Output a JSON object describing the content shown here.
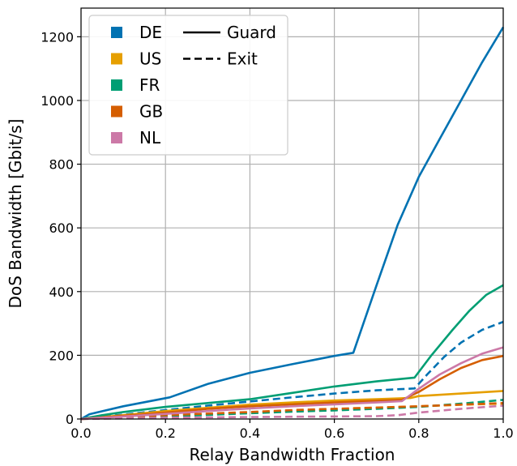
{
  "chart_data": {
    "type": "line",
    "title": "",
    "xlabel": "Relay Bandwidth Fraction",
    "ylabel": "DoS Bandwidth [Gbit/s]",
    "xlim": [
      0.0,
      1.0
    ],
    "ylim": [
      0,
      1290
    ],
    "xticks": [
      {
        "value": 0.0,
        "label": "0.0"
      },
      {
        "value": 0.2,
        "label": "0.2"
      },
      {
        "value": 0.4,
        "label": "0.4"
      },
      {
        "value": 0.6,
        "label": "0.6"
      },
      {
        "value": 0.8,
        "label": "0.8"
      },
      {
        "value": 1.0,
        "label": "1.0"
      }
    ],
    "yticks": [
      {
        "value": 0,
        "label": "0"
      },
      {
        "value": 200,
        "label": "200"
      },
      {
        "value": 400,
        "label": "400"
      },
      {
        "value": 600,
        "label": "600"
      },
      {
        "value": 800,
        "label": "800"
      },
      {
        "value": 1000,
        "label": "1000"
      },
      {
        "value": 1200,
        "label": "1200"
      }
    ],
    "grid": true,
    "legend_placement": "top-left",
    "legend": {
      "countries": [
        {
          "label": "DE",
          "color": "#0072b2"
        },
        {
          "label": "US",
          "color": "#e69f00"
        },
        {
          "label": "FR",
          "color": "#009e73"
        },
        {
          "label": "GB",
          "color": "#d55e00"
        },
        {
          "label": "NL",
          "color": "#cc79a7"
        }
      ],
      "styles": [
        {
          "label": "Guard",
          "dash": "solid"
        },
        {
          "label": "Exit",
          "dash": "dashed"
        }
      ]
    },
    "series": [
      {
        "country": "DE",
        "kind": "Guard",
        "color": "#0072b2",
        "dash": "solid",
        "points": [
          [
            0,
            0
          ],
          [
            0.02,
            15
          ],
          [
            0.1,
            40
          ],
          [
            0.21,
            68
          ],
          [
            0.3,
            110
          ],
          [
            0.4,
            145
          ],
          [
            0.5,
            172
          ],
          [
            0.6,
            198
          ],
          [
            0.645,
            208
          ],
          [
            0.7,
            420
          ],
          [
            0.75,
            610
          ],
          [
            0.8,
            760
          ],
          [
            0.85,
            880
          ],
          [
            0.9,
            1000
          ],
          [
            0.95,
            1120
          ],
          [
            1.0,
            1230
          ]
        ]
      },
      {
        "country": "DE",
        "kind": "Exit",
        "color": "#0072b2",
        "dash": "dashed",
        "points": [
          [
            0,
            0
          ],
          [
            0.1,
            14
          ],
          [
            0.2,
            28
          ],
          [
            0.3,
            42
          ],
          [
            0.4,
            55
          ],
          [
            0.5,
            68
          ],
          [
            0.6,
            80
          ],
          [
            0.7,
            90
          ],
          [
            0.79,
            96
          ],
          [
            0.82,
            140
          ],
          [
            0.86,
            195
          ],
          [
            0.9,
            240
          ],
          [
            0.95,
            280
          ],
          [
            1.0,
            305
          ]
        ]
      },
      {
        "country": "US",
        "kind": "Guard",
        "color": "#e69f00",
        "dash": "solid",
        "points": [
          [
            0,
            0
          ],
          [
            0.1,
            12
          ],
          [
            0.2,
            25
          ],
          [
            0.3,
            35
          ],
          [
            0.4,
            45
          ],
          [
            0.5,
            52
          ],
          [
            0.6,
            58
          ],
          [
            0.7,
            62
          ],
          [
            0.78,
            66
          ],
          [
            0.8,
            72
          ],
          [
            0.9,
            80
          ],
          [
            1.0,
            88
          ]
        ]
      },
      {
        "country": "US",
        "kind": "Exit",
        "color": "#e69f00",
        "dash": "dashed",
        "points": [
          [
            0,
            0
          ],
          [
            0.1,
            4
          ],
          [
            0.2,
            10
          ],
          [
            0.3,
            15
          ],
          [
            0.4,
            20
          ],
          [
            0.5,
            26
          ],
          [
            0.6,
            30
          ],
          [
            0.7,
            35
          ],
          [
            0.8,
            40
          ],
          [
            0.9,
            45
          ],
          [
            1.0,
            48
          ]
        ]
      },
      {
        "country": "FR",
        "kind": "Guard",
        "color": "#009e73",
        "dash": "solid",
        "points": [
          [
            0,
            0
          ],
          [
            0.05,
            12
          ],
          [
            0.1,
            22
          ],
          [
            0.2,
            38
          ],
          [
            0.3,
            50
          ],
          [
            0.4,
            62
          ],
          [
            0.5,
            82
          ],
          [
            0.6,
            102
          ],
          [
            0.7,
            118
          ],
          [
            0.79,
            130
          ],
          [
            0.83,
            200
          ],
          [
            0.88,
            280
          ],
          [
            0.92,
            340
          ],
          [
            0.96,
            390
          ],
          [
            1.0,
            420
          ]
        ]
      },
      {
        "country": "FR",
        "kind": "Exit",
        "color": "#009e73",
        "dash": "dashed",
        "points": [
          [
            0,
            0
          ],
          [
            0.1,
            4
          ],
          [
            0.2,
            8
          ],
          [
            0.3,
            13
          ],
          [
            0.4,
            18
          ],
          [
            0.5,
            23
          ],
          [
            0.6,
            27
          ],
          [
            0.7,
            32
          ],
          [
            0.8,
            38
          ],
          [
            0.9,
            48
          ],
          [
            1.0,
            60
          ]
        ]
      },
      {
        "country": "GB",
        "kind": "Guard",
        "color": "#d55e00",
        "dash": "solid",
        "points": [
          [
            0,
            0
          ],
          [
            0.1,
            10
          ],
          [
            0.2,
            20
          ],
          [
            0.3,
            32
          ],
          [
            0.4,
            40
          ],
          [
            0.5,
            46
          ],
          [
            0.6,
            52
          ],
          [
            0.7,
            57
          ],
          [
            0.76,
            60
          ],
          [
            0.8,
            85
          ],
          [
            0.85,
            125
          ],
          [
            0.9,
            160
          ],
          [
            0.95,
            185
          ],
          [
            1.0,
            198
          ]
        ]
      },
      {
        "country": "GB",
        "kind": "Exit",
        "color": "#d55e00",
        "dash": "dashed",
        "points": [
          [
            0,
            0
          ],
          [
            0.1,
            6
          ],
          [
            0.2,
            12
          ],
          [
            0.3,
            17
          ],
          [
            0.4,
            22
          ],
          [
            0.5,
            28
          ],
          [
            0.6,
            32
          ],
          [
            0.7,
            36
          ],
          [
            0.8,
            40
          ],
          [
            0.9,
            45
          ],
          [
            1.0,
            50
          ]
        ]
      },
      {
        "country": "NL",
        "kind": "Guard",
        "color": "#cc79a7",
        "dash": "solid",
        "points": [
          [
            0,
            0
          ],
          [
            0.1,
            8
          ],
          [
            0.2,
            16
          ],
          [
            0.3,
            25
          ],
          [
            0.4,
            33
          ],
          [
            0.5,
            40
          ],
          [
            0.6,
            46
          ],
          [
            0.7,
            52
          ],
          [
            0.76,
            56
          ],
          [
            0.8,
            95
          ],
          [
            0.85,
            140
          ],
          [
            0.9,
            175
          ],
          [
            0.95,
            205
          ],
          [
            1.0,
            225
          ]
        ]
      },
      {
        "country": "NL",
        "kind": "Exit",
        "color": "#cc79a7",
        "dash": "dashed",
        "points": [
          [
            0,
            0
          ],
          [
            0.1,
            2
          ],
          [
            0.2,
            4
          ],
          [
            0.3,
            5
          ],
          [
            0.4,
            6
          ],
          [
            0.5,
            7
          ],
          [
            0.6,
            8
          ],
          [
            0.7,
            9
          ],
          [
            0.75,
            12
          ],
          [
            0.8,
            20
          ],
          [
            0.9,
            32
          ],
          [
            1.0,
            42
          ]
        ]
      }
    ]
  }
}
